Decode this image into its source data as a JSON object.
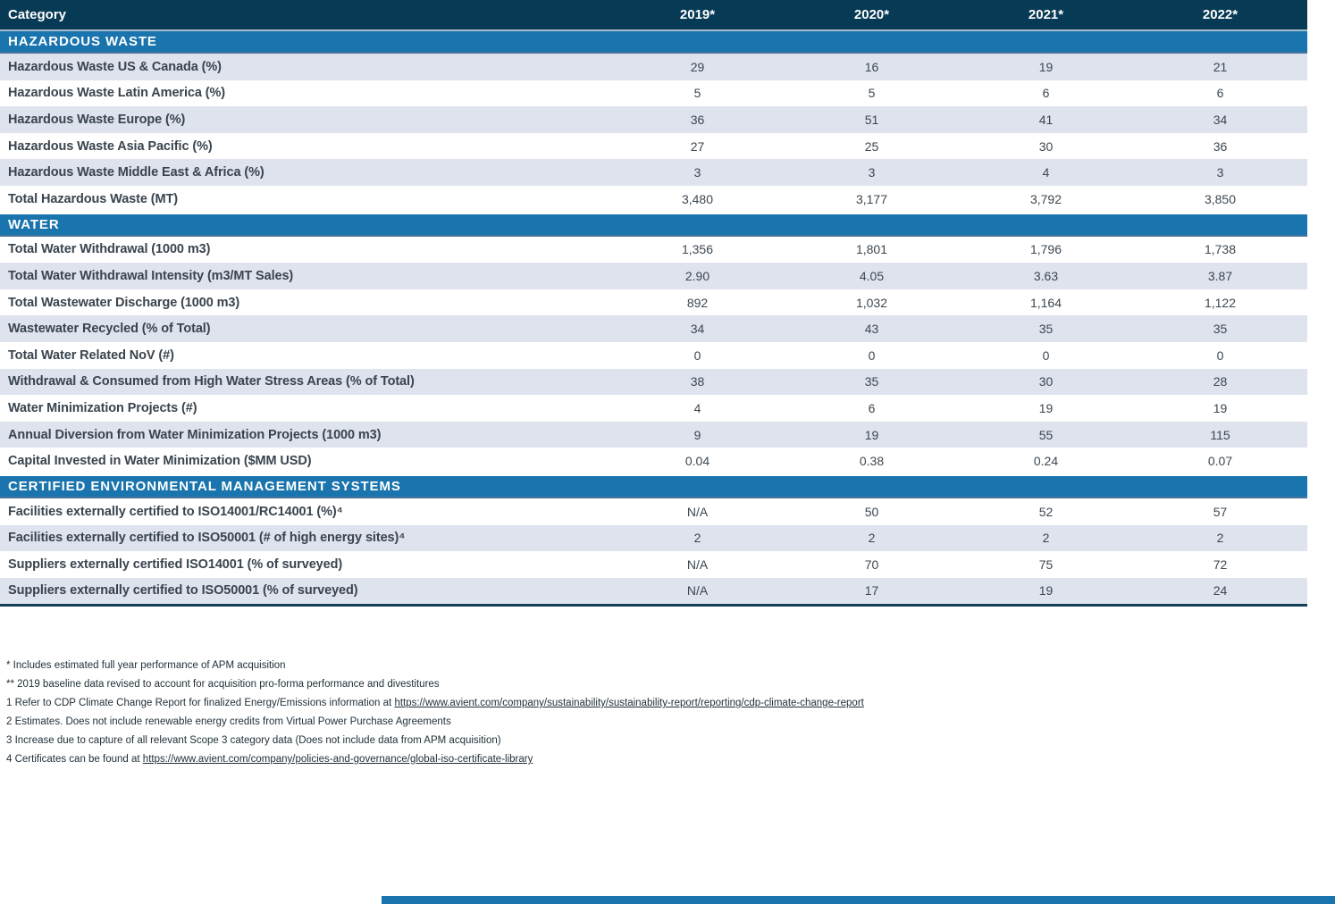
{
  "colors": {
    "header_navy": "#073b55",
    "section_blue": "#1a74ad",
    "row_shaded": "#dfe3ee",
    "text_dark": "#3c4751",
    "table_bottom_rule": "#123e58"
  },
  "table": {
    "header": {
      "category_label": "Category",
      "years": [
        "2019*",
        "2020*",
        "2021*",
        "2022*"
      ]
    },
    "sections": [
      {
        "title": "HAZARDOUS WASTE",
        "rows": [
          {
            "label": "Hazardous Waste US & Canada (%)",
            "values": [
              "29",
              "16",
              "19",
              "21"
            ],
            "shaded": true
          },
          {
            "label": "Hazardous Waste Latin America (%)",
            "values": [
              "5",
              "5",
              "6",
              "6"
            ],
            "shaded": false
          },
          {
            "label": "Hazardous Waste Europe (%)",
            "values": [
              "36",
              "51",
              "41",
              "34"
            ],
            "shaded": true
          },
          {
            "label": "Hazardous Waste Asia Pacific (%)",
            "values": [
              "27",
              "25",
              "30",
              "36"
            ],
            "shaded": false
          },
          {
            "label": "Hazardous Waste Middle East & Africa (%)",
            "values": [
              "3",
              "3",
              "4",
              "3"
            ],
            "shaded": true
          },
          {
            "label": "Total Hazardous Waste (MT)",
            "values": [
              "3,480",
              "3,177",
              "3,792",
              "3,850"
            ],
            "shaded": false
          }
        ]
      },
      {
        "title": "WATER",
        "rows": [
          {
            "label": "Total Water Withdrawal (1000 m3)",
            "values": [
              "1,356",
              "1,801",
              "1,796",
              "1,738"
            ],
            "shaded": false
          },
          {
            "label": "Total Water Withdrawal Intensity (m3/MT Sales)",
            "values": [
              "2.90",
              "4.05",
              "3.63",
              "3.87"
            ],
            "shaded": true
          },
          {
            "label": "Total Wastewater Discharge (1000 m3)",
            "values": [
              "892",
              "1,032",
              "1,164",
              "1,122"
            ],
            "shaded": false
          },
          {
            "label": "Wastewater Recycled (% of Total)",
            "values": [
              "34",
              "43",
              "35",
              "35"
            ],
            "shaded": true
          },
          {
            "label": "Total Water Related NoV (#)",
            "values": [
              "0",
              "0",
              "0",
              "0"
            ],
            "shaded": false
          },
          {
            "label": "Withdrawal & Consumed from High Water Stress Areas (% of Total)",
            "values": [
              "38",
              "35",
              "30",
              "28"
            ],
            "shaded": true
          },
          {
            "label": "Water Minimization Projects (#)",
            "values": [
              "4",
              "6",
              "19",
              "19"
            ],
            "shaded": false
          },
          {
            "label": "Annual Diversion from Water Minimization Projects (1000 m3)",
            "values": [
              "9",
              "19",
              "55",
              "115"
            ],
            "shaded": true
          },
          {
            "label": "Capital Invested in Water Minimization ($MM USD)",
            "values": [
              "0.04",
              "0.38",
              "0.24",
              "0.07"
            ],
            "shaded": false
          }
        ]
      },
      {
        "title": "CERTIFIED ENVIRONMENTAL MANAGEMENT SYSTEMS",
        "rows": [
          {
            "label": "Facilities externally certified to ISO14001/RC14001 (%)⁴",
            "values": [
              "N/A",
              "50",
              "52",
              "57"
            ],
            "shaded": false
          },
          {
            "label": "Facilities externally certified to ISO50001 (# of high energy sites)⁴",
            "values": [
              "2",
              "2",
              "2",
              "2"
            ],
            "shaded": true
          },
          {
            "label": "Suppliers externally certified ISO14001 (% of surveyed)",
            "values": [
              "N/A",
              "70",
              "75",
              "72"
            ],
            "shaded": false
          },
          {
            "label": "Suppliers externally certified to ISO50001 (% of surveyed)",
            "values": [
              "N/A",
              "17",
              "19",
              "24"
            ],
            "shaded": true
          }
        ]
      }
    ]
  },
  "footnotes": [
    {
      "text": "* Includes estimated full year performance of APM acquisition"
    },
    {
      "text": "** 2019 baseline data revised to account for acquisition pro-forma performance and divestitures"
    },
    {
      "text": "1 Refer to CDP Climate Change Report for finalized Energy/Emissions information at ",
      "link": "https://www.avient.com/company/sustainability/sustainability-report/reporting/cdp-climate-change-report"
    },
    {
      "text": "2 Estimates. Does not include renewable energy credits from Virtual Power Purchase Agreements"
    },
    {
      "text": "3 Increase due to capture of all relevant Scope 3 category data (Does not include data from APM acquisition)"
    },
    {
      "text": "4 Certificates can be found at ",
      "link": "https://www.avient.com/company/policies-and-governance/global-iso-certificate-library"
    }
  ]
}
